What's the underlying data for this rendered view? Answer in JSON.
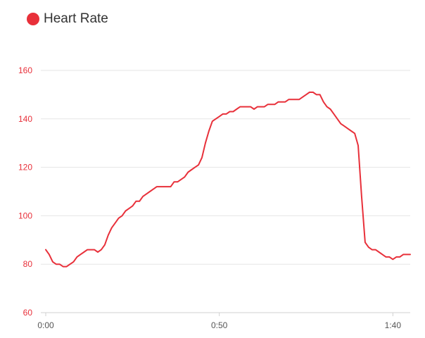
{
  "chart_data": {
    "type": "line",
    "legend_position": "top-left",
    "grid": true,
    "series": [
      {
        "name": "Heart Rate",
        "color": "#e8303a",
        "x": [
          0,
          1,
          2,
          3,
          4,
          5,
          6,
          7,
          8,
          9,
          10,
          11,
          12,
          13,
          14,
          15,
          16,
          17,
          18,
          19,
          20,
          21,
          22,
          23,
          24,
          25,
          26,
          27,
          28,
          29,
          30,
          31,
          32,
          33,
          34,
          35,
          36,
          37,
          38,
          39,
          40,
          41,
          42,
          43,
          44,
          45,
          46,
          47,
          48,
          49,
          50,
          51,
          52,
          53,
          54,
          55,
          56,
          57,
          58,
          59,
          60,
          61,
          62,
          63,
          64,
          65,
          66,
          67,
          68,
          69,
          70,
          71,
          72,
          73,
          74,
          75,
          76,
          77,
          78,
          79,
          80,
          81,
          82,
          83,
          84,
          85,
          86,
          87,
          88,
          89,
          90,
          91,
          92,
          93,
          94,
          95,
          96,
          97,
          98,
          99,
          100,
          101,
          102,
          103,
          104,
          105
        ],
        "y": [
          86,
          84,
          81,
          80,
          80,
          79,
          79,
          80,
          81,
          83,
          84,
          85,
          86,
          86,
          86,
          85,
          86,
          88,
          92,
          95,
          97,
          99,
          100,
          102,
          103,
          104,
          106,
          106,
          108,
          109,
          110,
          111,
          112,
          112,
          112,
          112,
          112,
          114,
          114,
          115,
          116,
          118,
          119,
          120,
          121,
          124,
          130,
          135,
          139,
          140,
          141,
          142,
          142,
          143,
          143,
          144,
          145,
          145,
          145,
          145,
          144,
          145,
          145,
          145,
          146,
          146,
          146,
          147,
          147,
          147,
          148,
          148,
          148,
          148,
          149,
          150,
          151,
          151,
          150,
          150,
          147,
          145,
          144,
          142,
          140,
          138,
          137,
          136,
          135,
          134,
          129,
          108,
          89,
          87,
          86,
          86,
          85,
          84,
          83,
          83,
          82,
          83,
          83,
          84,
          84,
          84
        ]
      }
    ],
    "ylim": [
      60,
      160
    ],
    "yticks": [
      60,
      80,
      100,
      120,
      140,
      160
    ],
    "xlim": [
      0,
      105
    ],
    "xticks": [
      {
        "value": 0,
        "label": "0:00"
      },
      {
        "value": 50,
        "label": "0:50"
      },
      {
        "value": 100,
        "label": "1:40"
      }
    ],
    "colors": {
      "tick_y": "#e8303a",
      "tick_x": "#555555",
      "grid": "#e6e6e6",
      "axis": "#d0d0d0"
    }
  }
}
